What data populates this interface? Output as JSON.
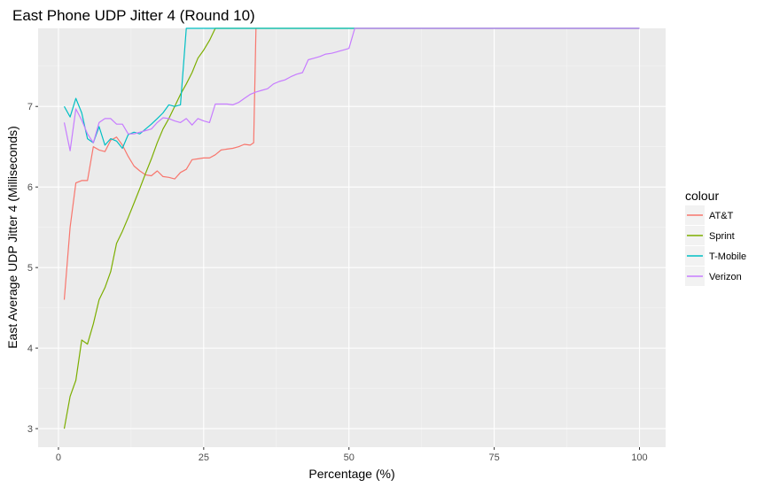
{
  "chart_data": {
    "type": "line",
    "title": "East Phone UDP Jitter 4 (Round 10)",
    "xlabel": "Percentage (%)",
    "ylabel": "East Average UDP Jitter 4 (Milliseconds)",
    "xlim": [
      -3.5,
      104.5
    ],
    "ylim": [
      2.77,
      7.97
    ],
    "x_ticks": [
      0,
      25,
      50,
      75,
      100
    ],
    "y_ticks": [
      3,
      4,
      5,
      6,
      7
    ],
    "x_tick_labels": [
      "0",
      "25",
      "50",
      "75",
      "100"
    ],
    "y_tick_labels": [
      "3",
      "4",
      "5",
      "6",
      "7"
    ],
    "grid": true,
    "legend": {
      "title": "colour",
      "position": "right"
    },
    "colors": {
      "panel": "#EBEBEB",
      "grid_major": "#FFFFFF",
      "grid_minor": "#F5F5F5"
    },
    "series": [
      {
        "name": "AT&T",
        "color": "#F8766D",
        "points": [
          [
            1,
            4.6
          ],
          [
            2,
            5.5
          ],
          [
            3,
            6.05
          ],
          [
            4,
            6.08
          ],
          [
            5,
            6.08
          ],
          [
            6,
            6.5
          ],
          [
            7,
            6.46
          ],
          [
            8,
            6.44
          ],
          [
            9,
            6.58
          ],
          [
            10,
            6.62
          ],
          [
            11,
            6.52
          ],
          [
            12,
            6.38
          ],
          [
            13,
            6.26
          ],
          [
            14,
            6.2
          ],
          [
            15,
            6.15
          ],
          [
            16,
            6.14
          ],
          [
            17,
            6.2
          ],
          [
            18,
            6.13
          ],
          [
            19,
            6.12
          ],
          [
            20,
            6.1
          ],
          [
            21,
            6.18
          ],
          [
            22,
            6.22
          ],
          [
            23,
            6.34
          ],
          [
            24,
            6.35
          ],
          [
            25,
            6.36
          ],
          [
            26,
            6.36
          ],
          [
            27,
            6.4
          ],
          [
            28,
            6.46
          ],
          [
            29,
            6.47
          ],
          [
            30,
            6.48
          ],
          [
            31,
            6.5
          ],
          [
            32,
            6.53
          ],
          [
            33,
            6.52
          ],
          [
            33.6,
            6.55
          ],
          [
            34,
            7.97
          ]
        ]
      },
      {
        "name": "Sprint",
        "color": "#7CAE00",
        "points": [
          [
            1,
            3.0
          ],
          [
            2,
            3.4
          ],
          [
            3,
            3.6
          ],
          [
            4,
            4.1
          ],
          [
            5,
            4.05
          ],
          [
            6,
            4.3
          ],
          [
            7,
            4.6
          ],
          [
            8,
            4.75
          ],
          [
            9,
            4.95
          ],
          [
            10,
            5.3
          ],
          [
            11,
            5.45
          ],
          [
            12,
            5.62
          ],
          [
            13,
            5.8
          ],
          [
            14,
            5.98
          ],
          [
            15,
            6.17
          ],
          [
            16,
            6.35
          ],
          [
            17,
            6.55
          ],
          [
            18,
            6.72
          ],
          [
            19,
            6.85
          ],
          [
            20,
            7.0
          ],
          [
            21,
            7.15
          ],
          [
            22,
            7.28
          ],
          [
            23,
            7.42
          ],
          [
            24,
            7.6
          ],
          [
            25,
            7.7
          ],
          [
            26,
            7.82
          ],
          [
            27,
            7.97
          ],
          [
            100,
            7.97
          ]
        ]
      },
      {
        "name": "T-Mobile",
        "color": "#00BFC4",
        "points": [
          [
            1,
            7.0
          ],
          [
            2,
            6.87
          ],
          [
            3,
            7.1
          ],
          [
            4,
            6.92
          ],
          [
            5,
            6.6
          ],
          [
            6,
            6.55
          ],
          [
            7,
            6.75
          ],
          [
            8,
            6.52
          ],
          [
            9,
            6.6
          ],
          [
            10,
            6.57
          ],
          [
            11,
            6.48
          ],
          [
            12,
            6.65
          ],
          [
            13,
            6.68
          ],
          [
            14,
            6.66
          ],
          [
            15,
            6.72
          ],
          [
            16,
            6.78
          ],
          [
            17,
            6.85
          ],
          [
            18,
            6.92
          ],
          [
            19,
            7.02
          ],
          [
            20,
            7.0
          ],
          [
            21,
            7.02
          ],
          [
            22,
            7.97
          ],
          [
            100,
            7.97
          ]
        ]
      },
      {
        "name": "Verizon",
        "color": "#C77CFF",
        "points": [
          [
            1,
            6.8
          ],
          [
            2,
            6.45
          ],
          [
            3,
            6.97
          ],
          [
            4,
            6.83
          ],
          [
            5,
            6.66
          ],
          [
            6,
            6.55
          ],
          [
            7,
            6.8
          ],
          [
            8,
            6.85
          ],
          [
            9,
            6.85
          ],
          [
            10,
            6.78
          ],
          [
            11,
            6.78
          ],
          [
            12,
            6.66
          ],
          [
            13,
            6.66
          ],
          [
            14,
            6.68
          ],
          [
            15,
            6.7
          ],
          [
            16,
            6.72
          ],
          [
            17,
            6.8
          ],
          [
            18,
            6.86
          ],
          [
            19,
            6.85
          ],
          [
            20,
            6.82
          ],
          [
            21,
            6.8
          ],
          [
            22,
            6.85
          ],
          [
            23,
            6.77
          ],
          [
            24,
            6.85
          ],
          [
            25,
            6.82
          ],
          [
            26,
            6.8
          ],
          [
            27,
            7.03
          ],
          [
            28,
            7.03
          ],
          [
            29,
            7.03
          ],
          [
            30,
            7.02
          ],
          [
            31,
            7.05
          ],
          [
            32,
            7.1
          ],
          [
            33,
            7.15
          ],
          [
            34,
            7.18
          ],
          [
            35,
            7.2
          ],
          [
            36,
            7.22
          ],
          [
            37,
            7.28
          ],
          [
            38,
            7.31
          ],
          [
            39,
            7.33
          ],
          [
            40,
            7.37
          ],
          [
            41,
            7.4
          ],
          [
            42,
            7.42
          ],
          [
            43,
            7.58
          ],
          [
            44,
            7.6
          ],
          [
            45,
            7.62
          ],
          [
            46,
            7.65
          ],
          [
            47,
            7.66
          ],
          [
            48,
            7.68
          ],
          [
            49,
            7.7
          ],
          [
            50,
            7.72
          ],
          [
            51,
            7.97
          ],
          [
            100,
            7.97
          ]
        ]
      }
    ]
  }
}
